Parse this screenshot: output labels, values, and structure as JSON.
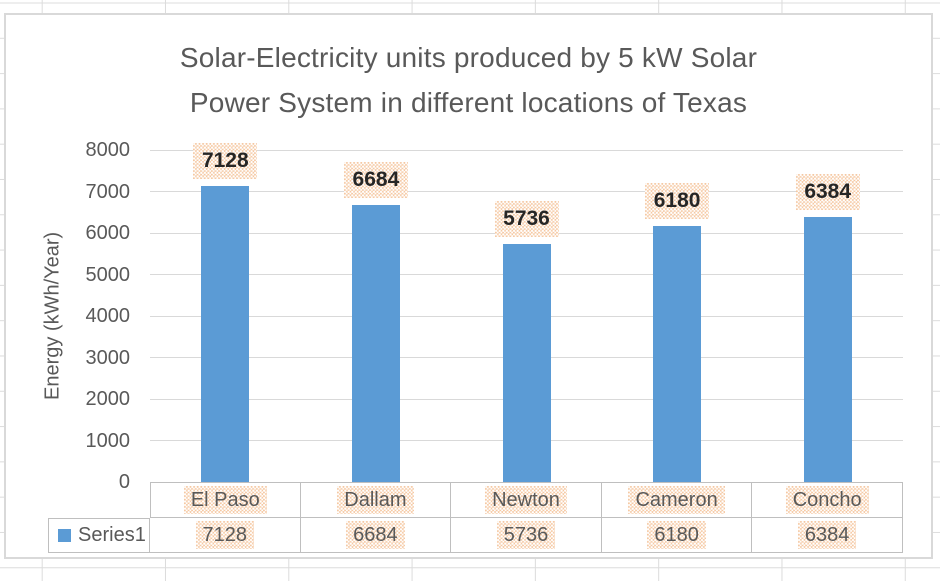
{
  "worksheet": {
    "description": "Excel worksheet with embedded chart"
  },
  "chart_data": {
    "type": "bar",
    "title_lines": [
      "Solar-Electricity units produced by 5 kW Solar",
      "Power System in different locations of Texas"
    ],
    "ylabel": "Energy (kWh/Year)",
    "xlabel": "",
    "categories": [
      "El Paso",
      "Dallam",
      "Newton",
      "Cameron",
      "Concho"
    ],
    "series": [
      {
        "name": "Series1",
        "values": [
          7128,
          6684,
          5736,
          6180,
          6384
        ]
      }
    ],
    "yticks": [
      0,
      1000,
      2000,
      3000,
      4000,
      5000,
      6000,
      7000,
      8000
    ],
    "ylim": [
      0,
      8000
    ],
    "grid": true,
    "data_labels_shown": true,
    "legend_position": "data-table-left",
    "data_table_shown": true
  },
  "colors": {
    "bar": "#5b9bd5",
    "title_text": "#595959",
    "axis_text": "#595959",
    "data_label_text": "#262626",
    "pattern_fill": "#f5c8a2",
    "pattern_dot": "#ffffff",
    "plot_gridline": "#d9d9d9",
    "chart_border": "#d9d9d9",
    "table_border": "#bfbfbf",
    "excel_gridline": "#dcdcdc",
    "background": "#ffffff"
  }
}
